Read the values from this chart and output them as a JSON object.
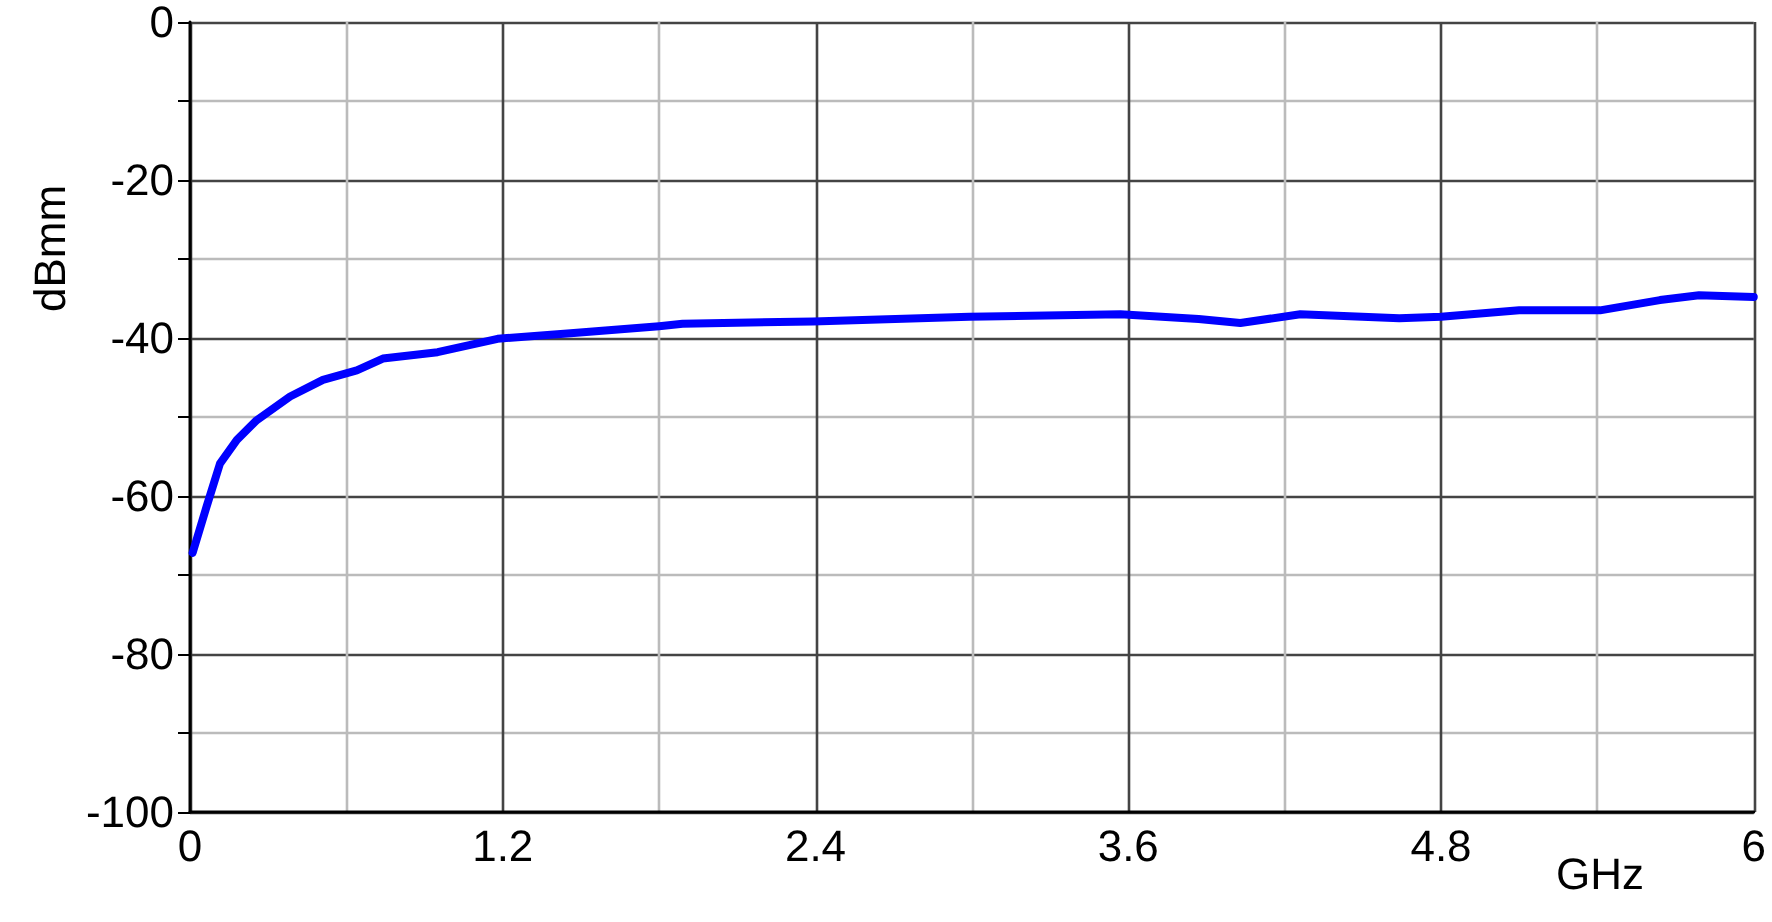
{
  "chart_data": {
    "type": "line",
    "xlabel": "GHz",
    "ylabel": "dBmm",
    "x": [
      0.01,
      0.064,
      0.115,
      0.18,
      0.256,
      0.384,
      0.51,
      0.64,
      0.74,
      0.95,
      1.18,
      1.46,
      1.8,
      1.89,
      2.39,
      2.99,
      3.57,
      3.87,
      4.03,
      4.26,
      4.64,
      4.8,
      5.1,
      5.41,
      5.64,
      5.79,
      6
    ],
    "series": [
      {
        "color": "#0000ff",
        "values": [
          -67.2,
          -61.3,
          -55.9,
          -52.9,
          -50.4,
          -47.4,
          -45.3,
          -44.1,
          -42.6,
          -41.8,
          -40.1,
          -39.4,
          -38.5,
          -38.2,
          -37.9,
          -37.3,
          -37.0,
          -37.6,
          -38.1,
          -37.0,
          -37.5,
          -37.3,
          -36.5,
          -36.5,
          -35.2,
          -34.6,
          -34.8
        ]
      }
    ],
    "xlim": [
      0,
      6
    ],
    "ylim": [
      -100,
      0
    ],
    "xticks": [
      0,
      {
        "value": 0.6,
        "label": null
      },
      1.2,
      {
        "value": 1.8,
        "label": null
      },
      2.4,
      {
        "value": 3.0,
        "label": null
      },
      3.6,
      {
        "value": 4.2,
        "label": null
      },
      4.8,
      {
        "value": 5.4,
        "label": null
      },
      6
    ],
    "yticks": [
      -100,
      {
        "value": -90,
        "label": null
      },
      -80,
      {
        "value": -70,
        "label": null
      },
      -60,
      {
        "value": -50,
        "label": null
      },
      -40,
      {
        "value": -30,
        "label": null
      },
      -20,
      {
        "value": -10,
        "label": null
      },
      0
    ],
    "grid": true,
    "marker": "none",
    "line_style": "solid"
  }
}
